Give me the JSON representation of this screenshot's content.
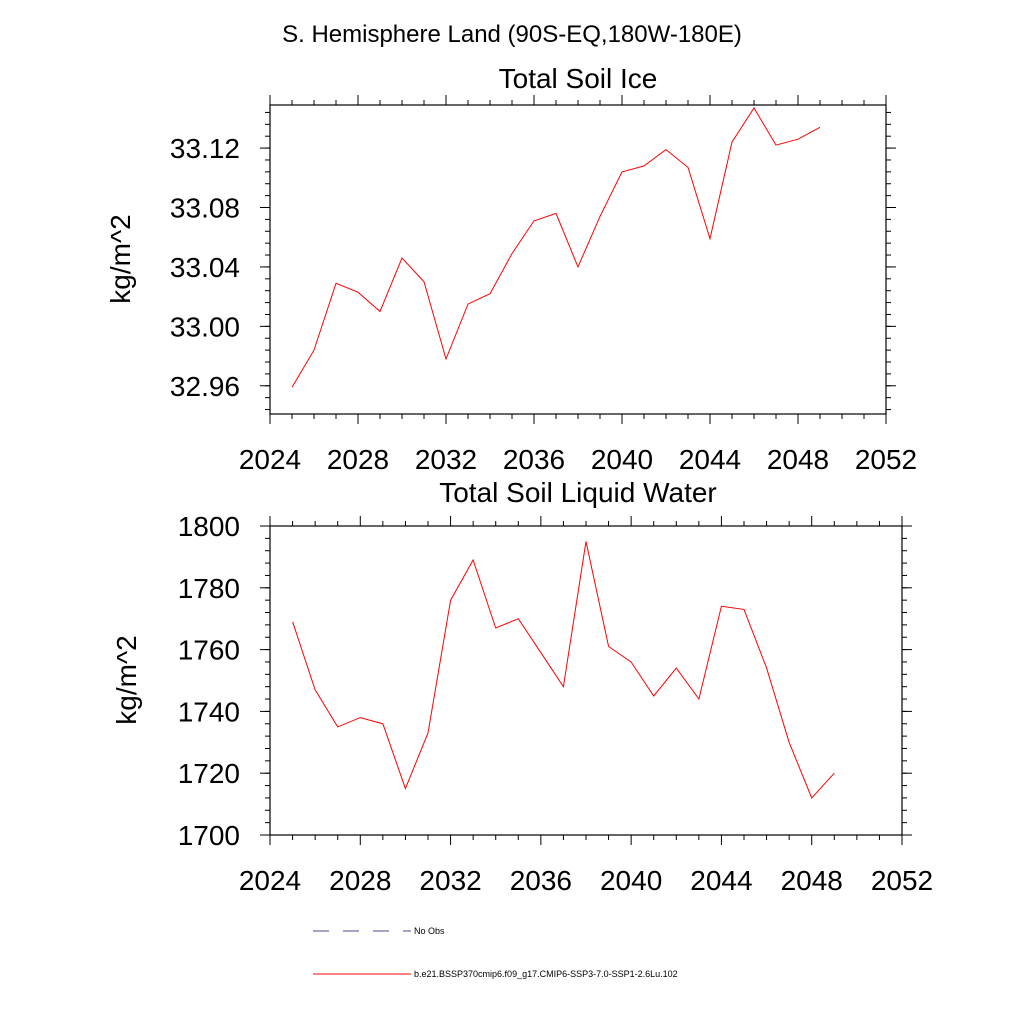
{
  "page_title": "S. Hemisphere Land (90S-EQ,180W-180E)",
  "chart_data": [
    {
      "type": "line",
      "title": "Total Soil Ice",
      "ylabel": "kg/m^2",
      "xlabel": "",
      "xlim": [
        2024,
        2052
      ],
      "ylim": [
        32.941,
        33.149
      ],
      "x_ticks": [
        2024,
        2028,
        2032,
        2036,
        2040,
        2044,
        2048,
        2052
      ],
      "y_ticks": [
        32.96,
        33.0,
        33.04,
        33.08,
        33.12
      ],
      "y_tick_labels": [
        "32.96",
        "33.00",
        "33.04",
        "33.08",
        "33.12"
      ],
      "grid": false,
      "series": [
        {
          "color": "#ff0000",
          "x": [
            2025,
            2026,
            2027,
            2028,
            2029,
            2030,
            2031,
            2032,
            2033,
            2034,
            2035,
            2036,
            2037,
            2038,
            2039,
            2040,
            2041,
            2042,
            2043,
            2044,
            2045,
            2046,
            2047,
            2048,
            2049
          ],
          "y": [
            32.959,
            32.984,
            33.029,
            33.023,
            33.01,
            33.046,
            33.03,
            32.978,
            33.015,
            33.022,
            33.049,
            33.071,
            33.076,
            33.04,
            33.074,
            33.104,
            33.108,
            33.119,
            33.107,
            33.059,
            33.124,
            33.147,
            33.122,
            33.126,
            33.134
          ]
        }
      ]
    },
    {
      "type": "line",
      "title": "Total Soil Liquid Water",
      "ylabel": "kg/m^2",
      "xlabel": "",
      "xlim": [
        2024,
        2052
      ],
      "ylim": [
        1700,
        1800
      ],
      "x_ticks": [
        2024,
        2028,
        2032,
        2036,
        2040,
        2044,
        2048,
        2052
      ],
      "y_ticks": [
        1700,
        1720,
        1740,
        1760,
        1780,
        1800
      ],
      "y_tick_labels": [
        "1700",
        "1720",
        "1740",
        "1760",
        "1780",
        "1800"
      ],
      "grid": false,
      "series": [
        {
          "color": "#ff0000",
          "x": [
            2025,
            2026,
            2027,
            2028,
            2029,
            2030,
            2031,
            2032,
            2033,
            2034,
            2035,
            2036,
            2037,
            2038,
            2039,
            2040,
            2041,
            2042,
            2043,
            2044,
            2045,
            2046,
            2047,
            2048,
            2049
          ],
          "y": [
            1769,
            1747,
            1735,
            1738,
            1736,
            1715,
            1733,
            1776,
            1789,
            1767,
            1770,
            1759,
            1748,
            1795,
            1761,
            1756,
            1745,
            1754,
            1744,
            1774,
            1773,
            1754,
            1730,
            1712,
            1720
          ]
        }
      ]
    }
  ],
  "legend": {
    "placement": "bottom",
    "items": [
      {
        "label": "No Obs",
        "color": "#4a4a8a",
        "dash": "dashed"
      },
      {
        "label": "b.e21.BSSP370cmip6.f09_g17.CMIP6-SSP3-7.0-SSP1-2.6Lu.102",
        "color": "#ff0000",
        "dash": "solid"
      }
    ]
  }
}
